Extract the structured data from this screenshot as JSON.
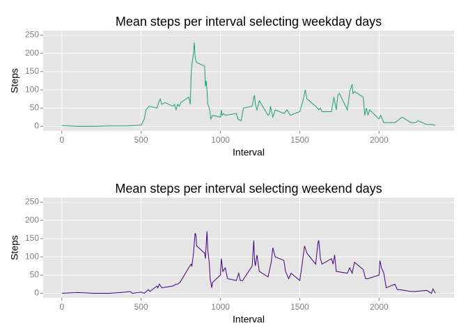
{
  "chart_data": [
    {
      "type": "line",
      "title": "Mean steps per interval selecting weekday days",
      "xlabel": "Interval",
      "ylabel": "Steps",
      "color": "#1b9e77",
      "grid": true,
      "xlim": [
        -117.75,
        2472.75
      ],
      "ylim": [
        -12.5,
        262.5
      ],
      "xticks": [
        0,
        500,
        1000,
        1500,
        2000
      ],
      "yticks": [
        0,
        50,
        100,
        150,
        200,
        250
      ],
      "x": [
        0,
        100,
        200,
        300,
        400,
        500,
        520,
        530,
        550,
        600,
        610,
        620,
        630,
        650,
        700,
        710,
        720,
        730,
        740,
        750,
        800,
        805,
        810,
        815,
        820,
        830,
        835,
        840,
        845,
        850,
        900,
        905,
        910,
        915,
        920,
        930,
        940,
        950,
        1000,
        1005,
        1010,
        1020,
        1030,
        1100,
        1110,
        1130,
        1145,
        1200,
        1210,
        1215,
        1220,
        1230,
        1245,
        1300,
        1310,
        1315,
        1330,
        1345,
        1400,
        1420,
        1440,
        1500,
        1520,
        1535,
        1545,
        1600,
        1620,
        1630,
        1640,
        1700,
        1715,
        1730,
        1740,
        1750,
        1800,
        1815,
        1830,
        1835,
        1845,
        1900,
        1910,
        1920,
        1930,
        1940,
        2000,
        2010,
        2030,
        2100,
        2130,
        2145,
        2200,
        2230,
        2245,
        2300,
        2330,
        2355
      ],
      "values": [
        2,
        0,
        0,
        1,
        1,
        3,
        20,
        45,
        55,
        50,
        65,
        75,
        60,
        65,
        55,
        60,
        45,
        60,
        55,
        65,
        80,
        70,
        60,
        140,
        170,
        200,
        230,
        190,
        180,
        175,
        165,
        110,
        125,
        100,
        60,
        50,
        20,
        30,
        25,
        45,
        30,
        35,
        30,
        35,
        20,
        15,
        50,
        55,
        80,
        85,
        60,
        45,
        70,
        30,
        35,
        55,
        25,
        45,
        35,
        45,
        30,
        40,
        70,
        100,
        75,
        55,
        45,
        50,
        40,
        40,
        80,
        45,
        85,
        90,
        45,
        95,
        115,
        90,
        95,
        80,
        30,
        50,
        30,
        45,
        20,
        30,
        10,
        10,
        20,
        25,
        10,
        10,
        15,
        5,
        5,
        2
      ]
    },
    {
      "type": "line",
      "title": "Mean steps per interval selecting weekend days",
      "xlabel": "Interval",
      "ylabel": "Steps",
      "color": "#3f007d",
      "grid": true,
      "xlim": [
        -117.75,
        2472.75
      ],
      "ylim": [
        -12.5,
        262.5
      ],
      "xticks": [
        0,
        500,
        1000,
        1500,
        2000
      ],
      "yticks": [
        0,
        50,
        100,
        150,
        200,
        250
      ],
      "x": [
        0,
        100,
        200,
        300,
        400,
        430,
        445,
        500,
        520,
        545,
        555,
        600,
        605,
        615,
        630,
        700,
        720,
        730,
        745,
        800,
        815,
        820,
        830,
        840,
        845,
        850,
        900,
        905,
        915,
        920,
        930,
        935,
        945,
        950,
        1000,
        1005,
        1010,
        1015,
        1030,
        1045,
        1100,
        1115,
        1125,
        1140,
        1200,
        1210,
        1215,
        1220,
        1230,
        1245,
        1300,
        1320,
        1330,
        1345,
        1400,
        1410,
        1430,
        1445,
        1500,
        1515,
        1530,
        1545,
        1600,
        1615,
        1620,
        1630,
        1640,
        1700,
        1710,
        1720,
        1730,
        1800,
        1815,
        1830,
        1845,
        1900,
        1915,
        1930,
        2000,
        2005,
        2015,
        2030,
        2045,
        2100,
        2115,
        2130,
        2200,
        2230,
        2300,
        2330,
        2340,
        2355
      ],
      "values": [
        0,
        2,
        0,
        0,
        3,
        5,
        0,
        3,
        0,
        10,
        5,
        20,
        15,
        25,
        15,
        20,
        25,
        25,
        30,
        70,
        80,
        75,
        110,
        165,
        160,
        130,
        110,
        95,
        170,
        120,
        80,
        40,
        15,
        30,
        50,
        95,
        80,
        60,
        70,
        40,
        35,
        55,
        35,
        35,
        75,
        145,
        90,
        75,
        105,
        60,
        45,
        85,
        125,
        100,
        90,
        60,
        40,
        55,
        35,
        80,
        130,
        110,
        80,
        140,
        145,
        95,
        80,
        95,
        80,
        105,
        60,
        55,
        70,
        55,
        85,
        65,
        40,
        40,
        50,
        90,
        70,
        55,
        15,
        25,
        10,
        10,
        5,
        5,
        8,
        0,
        12,
        0
      ]
    }
  ]
}
